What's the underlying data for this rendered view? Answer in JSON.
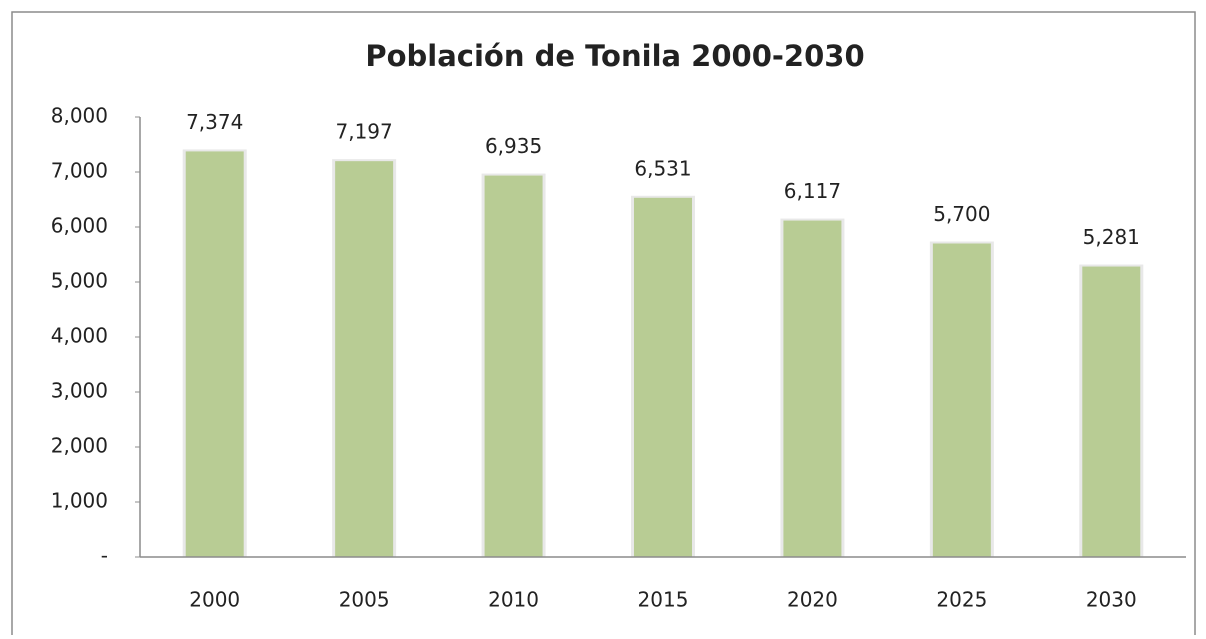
{
  "chart_data": {
    "type": "bar",
    "title": "Población de Tonila 2000-2030",
    "categories": [
      "2000",
      "2005",
      "2010",
      "2015",
      "2020",
      "2025",
      "2030"
    ],
    "values": [
      7374,
      7197,
      6935,
      6531,
      6117,
      5700,
      5281
    ],
    "value_labels": [
      "7,374",
      "7,197",
      "6,935",
      "6,531",
      "6,117",
      "5,700",
      "5,281"
    ],
    "color": "#b8cc94",
    "ylim": [
      0,
      8000
    ],
    "yticks": [
      {
        "value": 0,
        "label": "-"
      },
      {
        "value": 1000,
        "label": "1,000"
      },
      {
        "value": 2000,
        "label": "2,000"
      },
      {
        "value": 3000,
        "label": "3,000"
      },
      {
        "value": 4000,
        "label": "4,000"
      },
      {
        "value": 5000,
        "label": "5,000"
      },
      {
        "value": 6000,
        "label": "6,000"
      },
      {
        "value": 7000,
        "label": "7,000"
      },
      {
        "value": 8000,
        "label": "8,000"
      }
    ],
    "grid": false
  }
}
